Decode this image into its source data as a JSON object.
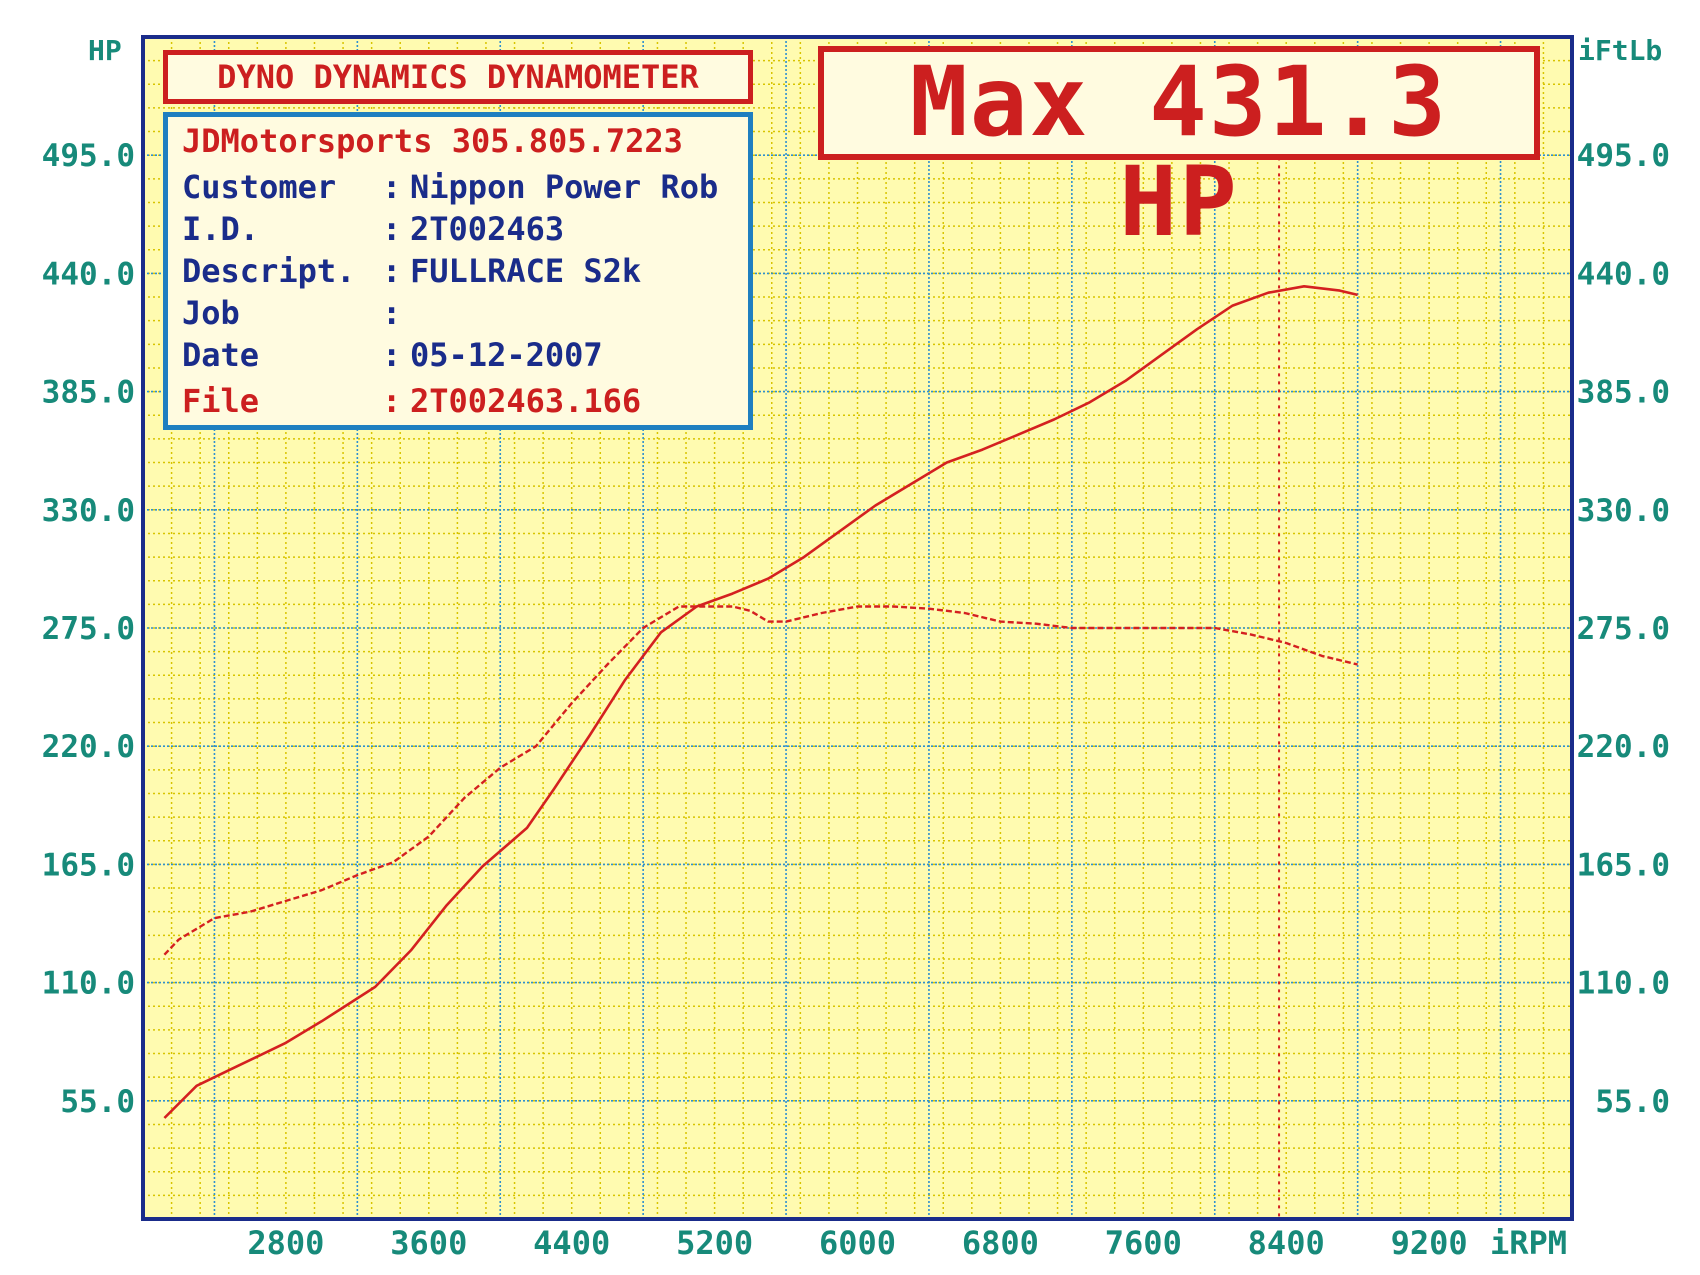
{
  "header": {
    "title": "DYNO DYNAMICS DYNAMOMETER",
    "max_label": "Max 431.3 HP"
  },
  "info": {
    "shop": "JDMotorsports 305.805.7223",
    "rows": [
      {
        "label": "Customer",
        "value": "Nippon Power Rob"
      },
      {
        "label": "I.D.",
        "value": "2T002463"
      },
      {
        "label": "Descript.",
        "value": "FULLRACE S2k"
      },
      {
        "label": "Job",
        "value": ""
      },
      {
        "label": "Date",
        "value": "05-12-2007"
      },
      {
        "label": "File",
        "value": "2T002463.166"
      }
    ]
  },
  "colors": {
    "background": "#fffbb0",
    "grid_minor": "#d8c400",
    "grid_major": "#2e90d0",
    "frame": "#1a2c8a",
    "axis_text": "#178a7a",
    "curve": "#d42020"
  },
  "chart_data": {
    "type": "line",
    "xlabel": "iRPM",
    "ylabel_left": "HP",
    "ylabel_right": "iFtLb",
    "xlim": [
      2000,
      10000
    ],
    "ylim": [
      0,
      550
    ],
    "x_ticks": [
      2800,
      3600,
      4400,
      5200,
      6000,
      6800,
      7600,
      8400,
      9200
    ],
    "x_tick_labels": [
      "2800",
      "3600",
      "4400",
      "5200",
      "6000",
      "6800",
      "7600",
      "8400",
      "9200"
    ],
    "y_ticks": [
      55,
      110,
      165,
      220,
      275,
      330,
      385,
      440,
      495
    ],
    "y_tick_labels": [
      "55.0",
      "110.0",
      "165.0",
      "220.0",
      "275.0",
      "330.0",
      "385.0",
      "440.0",
      "495.0"
    ],
    "peak_marker_x": 8360,
    "series": [
      {
        "style": "solid",
        "x": [
          2120,
          2300,
          2500,
          2800,
          3000,
          3300,
          3500,
          3700,
          3900,
          4150,
          4300,
          4500,
          4700,
          4900,
          5100,
          5300,
          5500,
          5700,
          5900,
          6100,
          6300,
          6500,
          6700,
          6900,
          7100,
          7300,
          7500,
          7700,
          7900,
          8100,
          8300,
          8500,
          8600,
          8700,
          8800
        ],
        "y": [
          47,
          62,
          70,
          82,
          92,
          108,
          125,
          146,
          164,
          182,
          200,
          225,
          251,
          273,
          285,
          291,
          298,
          308,
          320,
          332,
          342,
          352,
          358,
          365,
          372,
          380,
          390,
          402,
          414,
          425,
          431,
          434,
          433,
          432,
          430
        ]
      },
      {
        "style": "dashed",
        "x": [
          2120,
          2200,
          2400,
          2600,
          2800,
          3000,
          3200,
          3400,
          3600,
          3800,
          4000,
          4200,
          4400,
          4600,
          4800,
          5000,
          5100,
          5200,
          5300,
          5400,
          5500,
          5600,
          5800,
          6000,
          6200,
          6400,
          6600,
          6800,
          7000,
          7200,
          7400,
          7600,
          7800,
          8000,
          8200,
          8400,
          8600,
          8800
        ],
        "y": [
          123,
          130,
          140,
          143,
          148,
          153,
          160,
          166,
          178,
          196,
          210,
          220,
          240,
          258,
          275,
          285,
          285,
          285,
          285,
          283,
          278,
          278,
          282,
          285,
          285,
          284,
          282,
          278,
          277,
          275,
          275,
          275,
          275,
          275,
          272,
          268,
          262,
          258
        ]
      }
    ]
  }
}
